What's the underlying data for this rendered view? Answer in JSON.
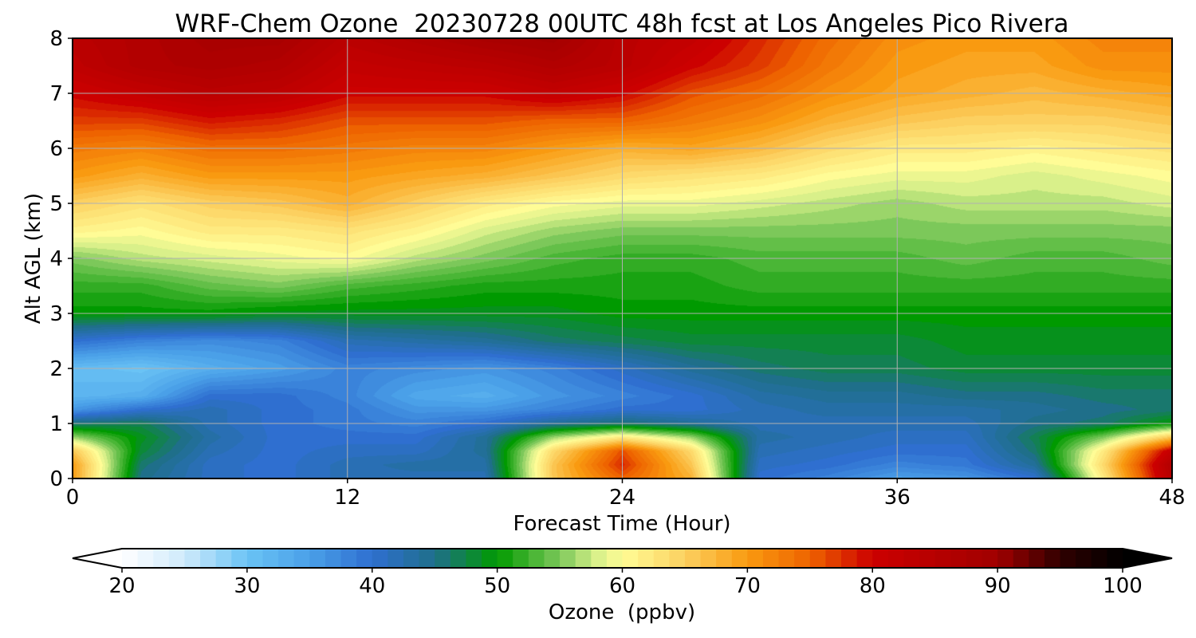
{
  "chart_data": {
    "type": "heatmap",
    "title": "WRF-Chem Ozone  20230728 00UTC 48h fcst at Los Angeles Pico Rivera",
    "xlabel": "Forecast Time (Hour)",
    "ylabel": "Alt AGL (km)",
    "xlim": [
      0,
      48
    ],
    "ylim": [
      0,
      8
    ],
    "x_ticks": [
      "0",
      "12",
      "24",
      "36",
      "48"
    ],
    "x_tick_values": [
      0,
      12,
      24,
      36,
      48
    ],
    "y_ticks": [
      "0",
      "1",
      "2",
      "3",
      "4",
      "5",
      "6",
      "7",
      "8"
    ],
    "y_tick_values": [
      0,
      1,
      2,
      3,
      4,
      5,
      6,
      7,
      8
    ],
    "grid": true,
    "z_label": "Ozone  (ppbv)",
    "z_range": [
      20,
      100
    ],
    "colorbar_ticks": [
      "20",
      "30",
      "40",
      "50",
      "60",
      "70",
      "80",
      "90",
      "100"
    ],
    "colorbar_tick_values": [
      20,
      30,
      40,
      50,
      60,
      70,
      80,
      90,
      100
    ],
    "colorbar_extend": "both",
    "colorbar_position": "bottom",
    "colormap_stops": [
      [
        20,
        "#ffffff"
      ],
      [
        25,
        "#cfeafb"
      ],
      [
        30,
        "#6ac3f5"
      ],
      [
        35,
        "#4aa0e8"
      ],
      [
        40,
        "#2f6fd0"
      ],
      [
        45,
        "#1f6f8a"
      ],
      [
        50,
        "#009a00"
      ],
      [
        55,
        "#7cc85a"
      ],
      [
        58,
        "#d9f08a"
      ],
      [
        60,
        "#fffc96"
      ],
      [
        65,
        "#fcd060"
      ],
      [
        70,
        "#f99a10"
      ],
      [
        75,
        "#ee6300"
      ],
      [
        80,
        "#cc0000"
      ],
      [
        90,
        "#a00000"
      ],
      [
        95,
        "#300000"
      ],
      [
        100,
        "#000000"
      ]
    ],
    "x": [
      0,
      3,
      6,
      9,
      12,
      15,
      18,
      21,
      24,
      27,
      30,
      33,
      36,
      39,
      42,
      45,
      48
    ],
    "y": [
      0,
      0.25,
      0.5,
      0.75,
      1,
      1.25,
      1.5,
      2,
      2.5,
      3,
      3.5,
      4,
      4.5,
      5,
      5.5,
      6,
      6.5,
      7,
      7.5,
      8
    ],
    "z": [
      [
        70,
        45,
        41,
        40,
        42,
        42,
        42,
        66,
        75,
        68,
        40,
        38,
        35,
        36,
        40,
        62,
        85
      ],
      [
        70,
        46,
        41,
        40,
        42,
        43,
        43,
        66,
        78,
        66,
        41,
        40,
        38,
        39,
        44,
        64,
        86
      ],
      [
        66,
        48,
        42,
        40,
        41,
        41,
        44,
        64,
        76,
        64,
        42,
        41,
        40,
        40,
        46,
        62,
        82
      ],
      [
        56,
        49,
        43,
        40,
        40,
        40,
        44,
        56,
        62,
        56,
        43,
        42,
        41,
        41,
        47,
        55,
        66
      ],
      [
        46,
        47,
        42,
        40,
        39,
        38,
        40,
        44,
        46,
        44,
        42,
        42,
        42,
        42,
        45,
        46,
        50
      ],
      [
        36,
        40,
        42,
        40,
        39,
        36,
        36,
        38,
        40,
        40,
        42,
        43,
        43,
        43,
        44,
        45,
        46
      ],
      [
        32,
        33,
        40,
        40,
        38,
        34,
        33,
        36,
        38,
        40,
        43,
        44,
        44,
        45,
        45,
        46,
        46
      ],
      [
        31,
        30,
        33,
        35,
        38,
        37,
        36,
        38,
        41,
        44,
        46,
        47,
        47,
        48,
        48,
        48,
        48
      ],
      [
        40,
        38,
        37,
        38,
        42,
        43,
        44,
        46,
        47,
        48,
        48,
        48,
        48,
        49,
        49,
        49,
        49
      ],
      [
        50,
        50,
        50,
        49,
        49,
        49,
        49,
        49,
        50,
        50,
        50,
        50,
        50,
        50,
        50,
        50,
        50
      ],
      [
        52,
        52,
        54,
        55,
        53,
        52,
        51,
        51,
        51,
        51,
        52,
        52,
        52,
        52,
        52,
        52,
        52
      ],
      [
        55,
        57,
        58,
        59,
        60,
        57,
        55,
        53,
        52,
        52,
        53,
        53,
        53,
        54,
        53,
        53,
        54
      ],
      [
        61,
        60,
        62,
        62,
        63,
        61,
        58,
        56,
        55,
        55,
        55,
        55,
        55,
        55,
        55,
        55,
        55
      ],
      [
        65,
        63,
        65,
        66,
        68,
        65,
        62,
        60,
        59,
        59,
        58,
        57,
        56,
        57,
        57,
        57,
        58
      ],
      [
        70,
        68,
        70,
        70,
        70,
        69,
        68,
        66,
        64,
        63,
        62,
        60,
        59,
        59,
        58,
        59,
        60
      ],
      [
        73,
        72,
        74,
        74,
        73,
        72,
        72,
        70,
        68,
        69,
        67,
        64,
        62,
        62,
        61,
        62,
        63
      ],
      [
        77,
        77,
        79,
        78,
        76,
        76,
        76,
        75,
        75,
        73,
        71,
        68,
        66,
        65,
        65,
        65,
        66
      ],
      [
        80,
        82,
        84,
        83,
        80,
        80,
        80,
        82,
        80,
        76,
        74,
        71,
        69,
        68,
        67,
        68,
        69
      ],
      [
        83,
        86,
        87,
        86,
        82,
        83,
        84,
        86,
        84,
        80,
        77,
        73,
        70,
        69,
        69,
        71,
        71
      ],
      [
        84,
        86,
        88,
        88,
        84,
        86,
        88,
        89,
        84,
        82,
        78,
        74,
        71,
        70,
        70,
        72,
        72
      ]
    ]
  }
}
